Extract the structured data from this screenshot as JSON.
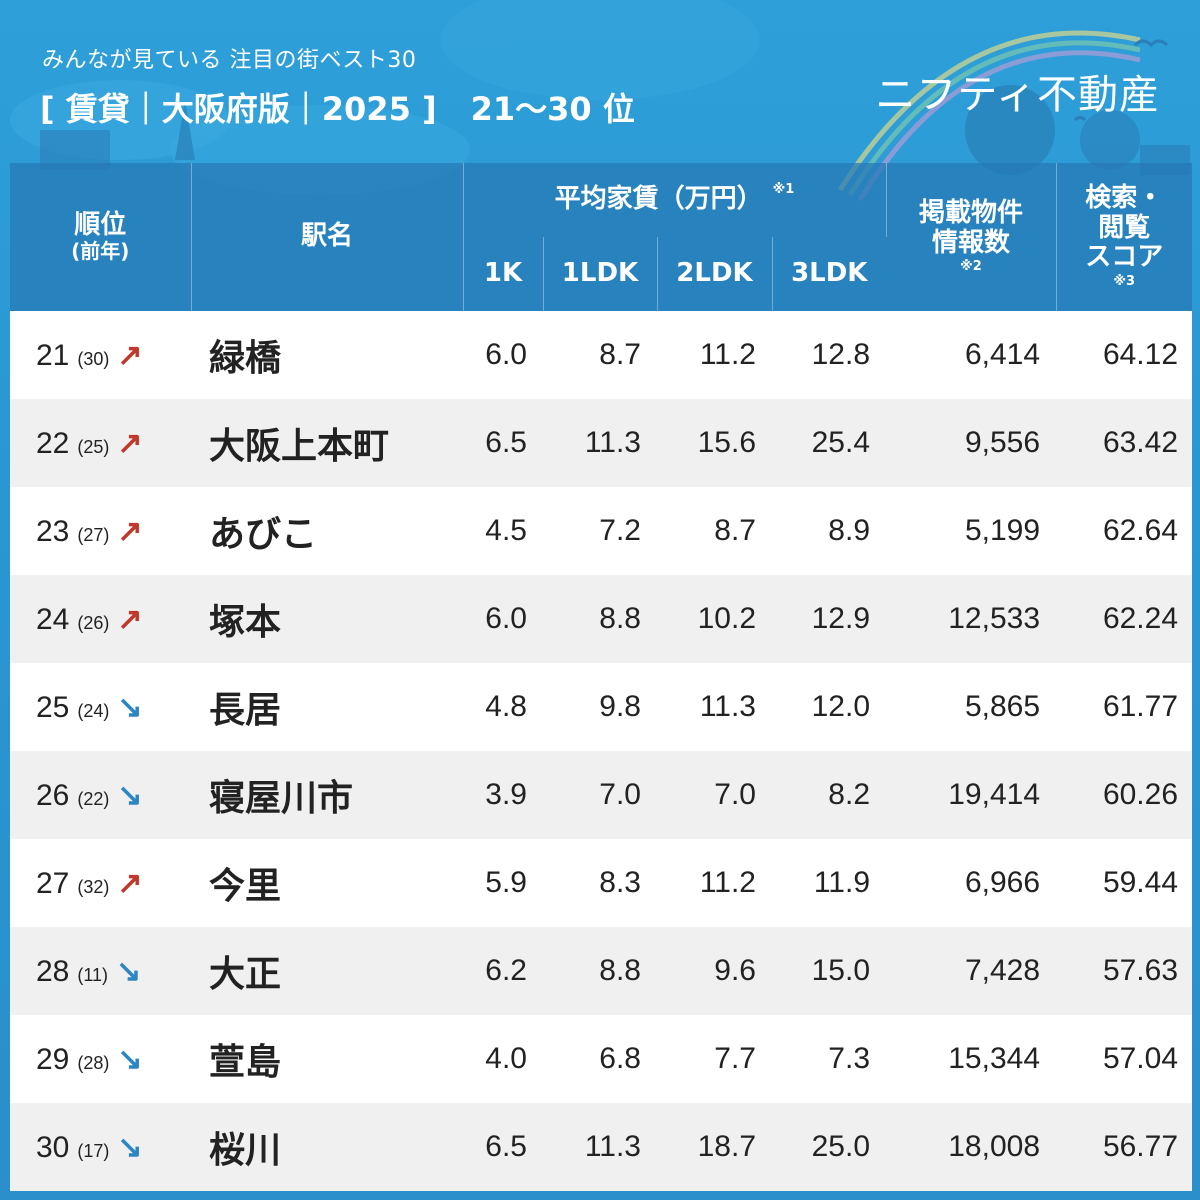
{
  "header": {
    "subtitle": "みんなが見ている 注目の街ベスト30",
    "title_main": "[ 賃貸｜大阪府版｜2025 ]",
    "title_range": "21～30 位",
    "brand": "ニフティ不動産"
  },
  "columns": {
    "rank": "順位",
    "rank_sub": "(前年)",
    "station": "駅名",
    "rent_group": "平均家賃（万円）",
    "rent_note": "※1",
    "k1": "1K",
    "ldk1": "1LDK",
    "ldk2": "2LDK",
    "ldk3": "3LDK",
    "listings_line1": "掲載物件",
    "listings_line2": "情報数",
    "listings_note": "※2",
    "score_line1": "検索・",
    "score_line2": "閲覧",
    "score_line3": "スコア",
    "score_note": "※3"
  },
  "colors": {
    "up": "#c0392b",
    "down": "#2e86c1"
  },
  "rows": [
    {
      "rank": "21",
      "prev": "(30)",
      "trend": "up",
      "arrow": "↗",
      "station": "緑橋",
      "k1": "6.0",
      "ldk1": "8.7",
      "ldk2": "11.2",
      "ldk3": "12.8",
      "listings": "6,414",
      "score": "64.12"
    },
    {
      "rank": "22",
      "prev": "(25)",
      "trend": "up",
      "arrow": "↗",
      "station": "大阪上本町",
      "k1": "6.5",
      "ldk1": "11.3",
      "ldk2": "15.6",
      "ldk3": "25.4",
      "listings": "9,556",
      "score": "63.42"
    },
    {
      "rank": "23",
      "prev": "(27)",
      "trend": "up",
      "arrow": "↗",
      "station": "あびこ",
      "k1": "4.5",
      "ldk1": "7.2",
      "ldk2": "8.7",
      "ldk3": "8.9",
      "listings": "5,199",
      "score": "62.64"
    },
    {
      "rank": "24",
      "prev": "(26)",
      "trend": "up",
      "arrow": "↗",
      "station": "塚本",
      "k1": "6.0",
      "ldk1": "8.8",
      "ldk2": "10.2",
      "ldk3": "12.9",
      "listings": "12,533",
      "score": "62.24"
    },
    {
      "rank": "25",
      "prev": "(24)",
      "trend": "down",
      "arrow": "↘",
      "station": "長居",
      "k1": "4.8",
      "ldk1": "9.8",
      "ldk2": "11.3",
      "ldk3": "12.0",
      "listings": "5,865",
      "score": "61.77"
    },
    {
      "rank": "26",
      "prev": "(22)",
      "trend": "down",
      "arrow": "↘",
      "station": "寝屋川市",
      "k1": "3.9",
      "ldk1": "7.0",
      "ldk2": "7.0",
      "ldk3": "8.2",
      "listings": "19,414",
      "score": "60.26"
    },
    {
      "rank": "27",
      "prev": "(32)",
      "trend": "up",
      "arrow": "↗",
      "station": "今里",
      "k1": "5.9",
      "ldk1": "8.3",
      "ldk2": "11.2",
      "ldk3": "11.9",
      "listings": "6,966",
      "score": "59.44"
    },
    {
      "rank": "28",
      "prev": "(11)",
      "trend": "down",
      "arrow": "↘",
      "station": "大正",
      "k1": "6.2",
      "ldk1": "8.8",
      "ldk2": "9.6",
      "ldk3": "15.0",
      "listings": "7,428",
      "score": "57.63"
    },
    {
      "rank": "29",
      "prev": "(28)",
      "trend": "down",
      "arrow": "↘",
      "station": "萱島",
      "k1": "4.0",
      "ldk1": "6.8",
      "ldk2": "7.7",
      "ldk3": "7.3",
      "listings": "15,344",
      "score": "57.04"
    },
    {
      "rank": "30",
      "prev": "(17)",
      "trend": "down",
      "arrow": "↘",
      "station": "桜川",
      "k1": "6.5",
      "ldk1": "11.3",
      "ldk2": "18.7",
      "ldk3": "25.0",
      "listings": "18,008",
      "score": "56.77"
    }
  ]
}
